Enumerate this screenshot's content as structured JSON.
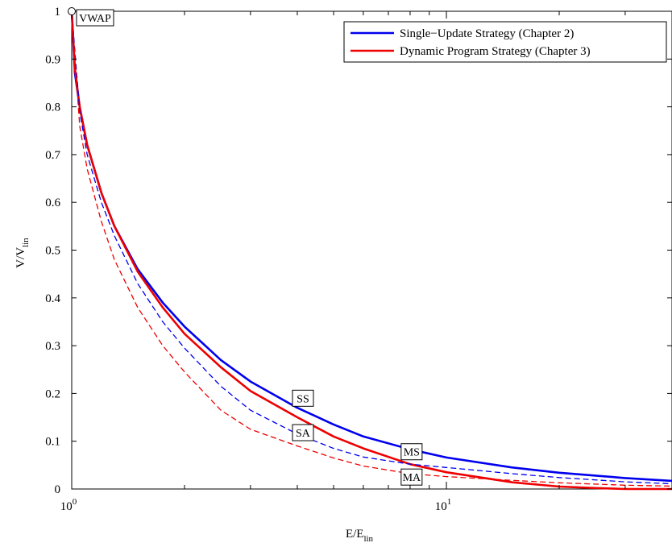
{
  "chart_data": {
    "type": "line",
    "title": "",
    "xlabel": {
      "main": "E/E",
      "sub": "lin"
    },
    "ylabel": {
      "main": "V/V",
      "sub": "lin"
    },
    "xscale": "log",
    "xlim": [
      1,
      40
    ],
    "ylim": [
      0,
      1
    ],
    "x_ticks": [
      {
        "label": "10",
        "exp": "0",
        "value": 1
      },
      {
        "label": "10",
        "exp": "1",
        "value": 10
      }
    ],
    "y_ticks": [
      {
        "value": 0,
        "label": "0"
      },
      {
        "value": 0.1,
        "label": "0.1"
      },
      {
        "value": 0.2,
        "label": "0.2"
      },
      {
        "value": 0.3,
        "label": "0.3"
      },
      {
        "value": 0.4,
        "label": "0.4"
      },
      {
        "value": 0.5,
        "label": "0.5"
      },
      {
        "value": 0.6,
        "label": "0.6"
      },
      {
        "value": 0.7,
        "label": "0.7"
      },
      {
        "value": 0.8,
        "label": "0.8"
      },
      {
        "value": 0.9,
        "label": "0.9"
      },
      {
        "value": 1,
        "label": "1"
      }
    ],
    "grid": false,
    "legend_position": "top-right",
    "series": [
      {
        "name": "Single−Update Strategy (Chapter 2)",
        "id": "SS",
        "color": "#0000ee",
        "style": "solid",
        "x": [
          1.0,
          1.02,
          1.05,
          1.1,
          1.2,
          1.3,
          1.5,
          1.75,
          2.0,
          2.5,
          3.0,
          4.0,
          5.0,
          6.0,
          8.0,
          10.0,
          15.0,
          20.0,
          30.0,
          40.0
        ],
        "y": [
          1.0,
          0.87,
          0.8,
          0.72,
          0.62,
          0.55,
          0.46,
          0.39,
          0.34,
          0.27,
          0.225,
          0.17,
          0.135,
          0.11,
          0.083,
          0.066,
          0.045,
          0.034,
          0.023,
          0.017
        ]
      },
      {
        "name": "Dynamic Program Strategy (Chapter 3)",
        "id": "MS",
        "color": "#ee0000",
        "style": "solid",
        "x": [
          1.0,
          1.02,
          1.05,
          1.1,
          1.2,
          1.3,
          1.5,
          1.75,
          2.0,
          2.5,
          3.0,
          4.0,
          5.0,
          6.0,
          8.0,
          10.0,
          15.0,
          20.0,
          25.0,
          30.0,
          40.0
        ],
        "y": [
          1.0,
          0.88,
          0.8,
          0.72,
          0.62,
          0.55,
          0.455,
          0.38,
          0.325,
          0.255,
          0.205,
          0.15,
          0.11,
          0.085,
          0.052,
          0.035,
          0.014,
          0.005,
          0.002,
          0.0,
          0.0
        ]
      },
      {
        "name": "SA",
        "id": "SA",
        "color": "#0000ee",
        "style": "dashed",
        "x": [
          1.0,
          1.05,
          1.1,
          1.2,
          1.3,
          1.5,
          1.75,
          2.0,
          2.5,
          3.0,
          4.0,
          5.0,
          6.0,
          8.0,
          10.0,
          15.0,
          20.0,
          30.0,
          40.0
        ],
        "y": [
          1.0,
          0.79,
          0.7,
          0.6,
          0.53,
          0.43,
          0.35,
          0.295,
          0.215,
          0.165,
          0.115,
          0.085,
          0.067,
          0.052,
          0.045,
          0.032,
          0.024,
          0.015,
          0.011
        ]
      },
      {
        "name": "MA",
        "id": "MA",
        "color": "#ee0000",
        "style": "dashed",
        "x": [
          1.0,
          1.05,
          1.1,
          1.2,
          1.3,
          1.5,
          1.75,
          2.0,
          2.5,
          3.0,
          4.0,
          5.0,
          6.0,
          8.0,
          10.0,
          15.0,
          20.0,
          30.0,
          40.0
        ],
        "y": [
          1.0,
          0.76,
          0.67,
          0.56,
          0.48,
          0.38,
          0.3,
          0.245,
          0.165,
          0.125,
          0.09,
          0.065,
          0.048,
          0.032,
          0.026,
          0.018,
          0.013,
          0.008,
          0.006
        ]
      }
    ],
    "annotations": [
      {
        "text": "VWAP",
        "x": 1.0,
        "y": 1.0,
        "marker": "circle"
      },
      {
        "text": "SS",
        "x": 4.0,
        "y": 0.19
      },
      {
        "text": "SA",
        "x": 4.0,
        "y": 0.118
      },
      {
        "text": "MS",
        "x": 7.8,
        "y": 0.078
      },
      {
        "text": "MA",
        "x": 7.8,
        "y": 0.025
      }
    ]
  }
}
